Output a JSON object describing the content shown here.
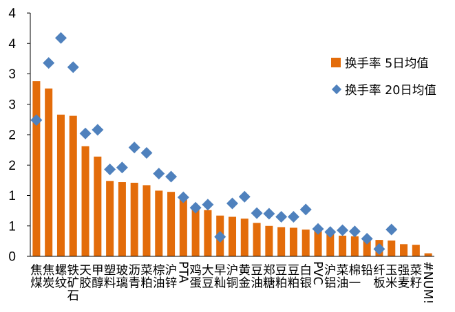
{
  "chart_data": {
    "type": "bar",
    "colors": {
      "bar": "#E36C0A",
      "marker": "#4F81BD",
      "axis": "#000000"
    },
    "legend_position": "right",
    "grid": false,
    "y_tick_labels": [
      "0",
      "1",
      "1",
      "2",
      "2",
      "3",
      "3",
      "4",
      "4"
    ],
    "ylim": [
      0,
      4
    ],
    "categories": [
      "焦煤",
      "焦炭",
      "螺纹",
      "铁矿石",
      "天胶",
      "甲醇",
      "塑料",
      "玻璃",
      "沥青",
      "菜粕",
      "棕油",
      "沪锌",
      "PTA",
      "鸡蛋",
      "大豆",
      "早籼",
      "沪铜",
      "黄金",
      "豆油",
      "郑糖",
      "豆粕",
      "豆粕",
      "白银",
      "PVC",
      "沪铝",
      "菜油",
      "棉一",
      "铅",
      "纤板",
      "玉米",
      "强麦",
      "菜籽",
      "#NUM!"
    ],
    "series": [
      {
        "name": "换手率 5日均值",
        "kind": "bar",
        "values": [
          2.88,
          2.76,
          2.33,
          2.31,
          1.81,
          1.64,
          1.24,
          1.22,
          1.21,
          1.17,
          1.08,
          1.06,
          0.97,
          0.78,
          0.76,
          0.67,
          0.65,
          0.62,
          0.55,
          0.5,
          0.48,
          0.47,
          0.44,
          0.43,
          0.38,
          0.34,
          0.33,
          0.31,
          0.27,
          0.26,
          0.2,
          0.19,
          0.05
        ]
      },
      {
        "name": "换手率 20日均值",
        "kind": "marker",
        "values": [
          2.24,
          3.18,
          3.59,
          3.11,
          2.02,
          2.08,
          1.43,
          1.46,
          1.79,
          1.7,
          1.36,
          1.31,
          0.97,
          0.8,
          0.85,
          0.32,
          0.87,
          0.98,
          0.71,
          0.7,
          0.65,
          0.65,
          0.77,
          0.45,
          0.4,
          0.43,
          0.41,
          0.29,
          0.12,
          0.44,
          null,
          null,
          null
        ]
      }
    ]
  }
}
